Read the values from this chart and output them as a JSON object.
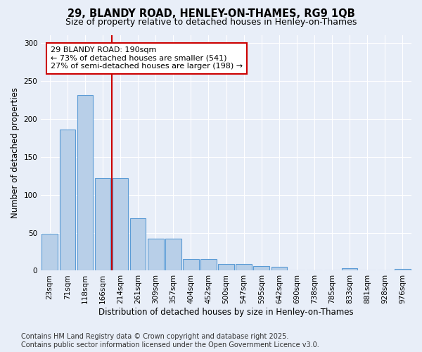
{
  "title_line1": "29, BLANDY ROAD, HENLEY-ON-THAMES, RG9 1QB",
  "title_line2": "Size of property relative to detached houses in Henley-on-Thames",
  "xlabel": "Distribution of detached houses by size in Henley-on-Thames",
  "ylabel": "Number of detached properties",
  "categories": [
    "23sqm",
    "71sqm",
    "118sqm",
    "166sqm",
    "214sqm",
    "261sqm",
    "309sqm",
    "357sqm",
    "404sqm",
    "452sqm",
    "500sqm",
    "547sqm",
    "595sqm",
    "642sqm",
    "690sqm",
    "738sqm",
    "785sqm",
    "833sqm",
    "881sqm",
    "928sqm",
    "976sqm"
  ],
  "values": [
    49,
    186,
    231,
    122,
    122,
    69,
    42,
    42,
    15,
    15,
    9,
    9,
    6,
    5,
    0,
    0,
    0,
    3,
    0,
    0,
    2
  ],
  "bar_color": "#b8cfe8",
  "bar_edgecolor": "#5b9bd5",
  "vline_x": 3.5,
  "vline_color": "#cc0000",
  "annotation_text": "29 BLANDY ROAD: 190sqm\n← 73% of detached houses are smaller (541)\n27% of semi-detached houses are larger (198) →",
  "annotation_box_edgecolor": "#cc0000",
  "annotation_box_facecolor": "#ffffff",
  "ylim": [
    0,
    310
  ],
  "yticks": [
    0,
    50,
    100,
    150,
    200,
    250,
    300
  ],
  "footer_line1": "Contains HM Land Registry data © Crown copyright and database right 2025.",
  "footer_line2": "Contains public sector information licensed under the Open Government Licence v3.0.",
  "background_color": "#e8eef8",
  "plot_background": "#e8eef8",
  "grid_color": "#ffffff",
  "title_fontsize": 10.5,
  "subtitle_fontsize": 9,
  "axis_label_fontsize": 8.5,
  "tick_fontsize": 7.5,
  "annotation_fontsize": 8,
  "footer_fontsize": 7
}
